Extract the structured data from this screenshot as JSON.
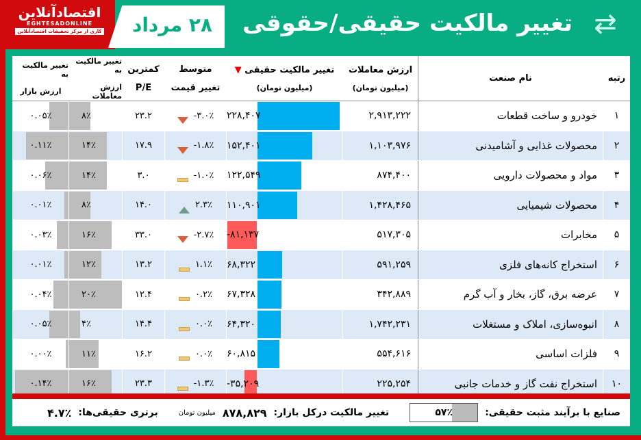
{
  "header": {
    "logo_fa": "اقتصادآنلاین",
    "logo_en": "EGHTESADONLINE",
    "logo_sub": "کاری از مرکز تحقیقات اقتصادآنلاین",
    "date": "۲۸ مرداد",
    "title": "تغییر مالکیت حقیقی/حقوقی",
    "icon": "ownership-transfer-icon"
  },
  "columns": {
    "rank": "رتبه",
    "name": "نام صنعت",
    "value_1": "ارزش معاملات",
    "value_2": "(میلیون تومان)",
    "real_1": "تغییر مالکیت حقیقی",
    "real_2": "(میلیون تومان)",
    "avg_1": "متوسط",
    "avg_2": "تغییر قیمت",
    "pe_1": "کمترین",
    "pe_2": "P/E",
    "txn_1": "تغییر مالکیت به",
    "txn_2": "ارزش معاملات",
    "mkt_1": "تغییر مالکیت به",
    "mkt_2": "ارزش بازار"
  },
  "colors": {
    "positive_bar": "#00aeef",
    "negative_bar": "#ff5a5a",
    "share_bar": "#bdbdbd",
    "down": "#d8613c",
    "up": "#6d9e88",
    "flat": "#f0c873"
  },
  "rows": [
    {
      "rank": "۱",
      "name": "خودرو و ساخت قطعات",
      "value": "۲,۹۱۳,۲۲۲",
      "real": "۲۲۸,۴۰۷",
      "real_num": 228407,
      "avg": "-۳.۰٪",
      "trend": "down",
      "pe": "۲۳.۲",
      "txn": "۸٪",
      "txn_num": 8,
      "mkt": "۰.۰۵٪",
      "mkt_num": 0.05
    },
    {
      "rank": "۲",
      "name": "محصولات غذایی و آشامیدنی",
      "value": "۱,۱۰۳,۹۷۶",
      "real": "۱۵۲,۴۰۱",
      "real_num": 152401,
      "avg": "-۱.۸٪",
      "trend": "down",
      "pe": "۱۷.۹",
      "txn": "۱۴٪",
      "txn_num": 14,
      "mkt": "۰.۱۱٪",
      "mkt_num": 0.11
    },
    {
      "rank": "۳",
      "name": "مواد و محصولات دارویی",
      "value": "۸۷۴,۴۰۰",
      "real": "۱۲۲,۵۴۹",
      "real_num": 122549,
      "avg": "-۱.۰٪",
      "trend": "flat",
      "pe": "۳.۰",
      "txn": "۱۴٪",
      "txn_num": 14,
      "mkt": "۰.۰۶٪",
      "mkt_num": 0.06
    },
    {
      "rank": "۴",
      "name": "محصولات شیمیایی",
      "value": "۱,۴۲۸,۴۶۵",
      "real": "۱۱۰,۹۰۱",
      "real_num": 110901,
      "avg": "۲.۳٪",
      "trend": "up",
      "pe": "۱۴.۰",
      "txn": "۸٪",
      "txn_num": 8,
      "mkt": "۰.۰۱٪",
      "mkt_num": 0.01
    },
    {
      "rank": "۵",
      "name": "مخابرات",
      "value": "۵۱۷,۳۰۵",
      "real": "-۸۱,۱۳۷",
      "real_num": -81137,
      "avg": "-۲.۷٪",
      "trend": "down",
      "pe": "۳۳.۰",
      "txn": "۱۶٪",
      "txn_num": 16,
      "mkt": "۰.۰۳٪",
      "mkt_num": 0.03
    },
    {
      "rank": "۶",
      "name": "استخراج کانه‌های فلزی",
      "value": "۵۹۱,۲۵۹",
      "real": "۶۸,۳۲۲",
      "real_num": 68322,
      "avg": "۱.۱٪",
      "trend": "flat",
      "pe": "۱۳.۲",
      "txn": "۱۲٪",
      "txn_num": 12,
      "mkt": "۰.۰۱٪",
      "mkt_num": 0.01
    },
    {
      "rank": "۷",
      "name": "عرضه برق، گاز، بخار و آب گرم",
      "value": "۳۴۲,۸۸۹",
      "real": "۶۷,۳۲۸",
      "real_num": 67328,
      "avg": "۰.۲٪",
      "trend": "flat",
      "pe": "۱۲.۴",
      "txn": "۲۰٪",
      "txn_num": 20,
      "mkt": "۰.۰۴٪",
      "mkt_num": 0.04
    },
    {
      "rank": "۸",
      "name": "انبوه‌سازی، املاک و مستغلات",
      "value": "۱,۷۴۲,۲۳۱",
      "real": "۶۴,۳۲۰",
      "real_num": 64320,
      "avg": "۰.۰٪",
      "trend": "flat",
      "pe": "۱۴.۴",
      "txn": "۴٪",
      "txn_num": 4,
      "mkt": "۰.۰۵٪",
      "mkt_num": 0.05
    },
    {
      "rank": "۹",
      "name": "فلزات اساسی",
      "value": "۵۵۴,۶۱۶",
      "real": "۶۰,۸۱۵",
      "real_num": 60815,
      "avg": "۰.۰٪",
      "trend": "flat",
      "pe": "۱۶.۲",
      "txn": "۱۱٪",
      "txn_num": 11,
      "mkt": "۰.۰۰٪",
      "mkt_num": 0.003
    },
    {
      "rank": "۱۰",
      "name": "استخراج نفت گاز و خدمات جانبی",
      "value": "۲۲۵,۲۵۴",
      "real": "-۳۵,۲۰۹",
      "real_num": -35209,
      "avg": "-۱.۳٪",
      "trend": "flat",
      "pe": "۲۳.۳",
      "txn": "۱۶٪",
      "txn_num": 16,
      "mkt": "۰.۱۴٪",
      "mkt_num": 0.14
    }
  ],
  "footer": {
    "positive_label": "صنایع با برآیند مثبت حقیقی:",
    "positive_value": "۵۷٪",
    "positive_num": 57,
    "market_label": "تغییر مالکیت درکل بازار:",
    "market_value": "۸۷۸,۸۲۹",
    "market_unit": "میلیون تومان",
    "adv_label": "برتری حقیقی‌ها:",
    "adv_value": "۴.۷٪"
  }
}
